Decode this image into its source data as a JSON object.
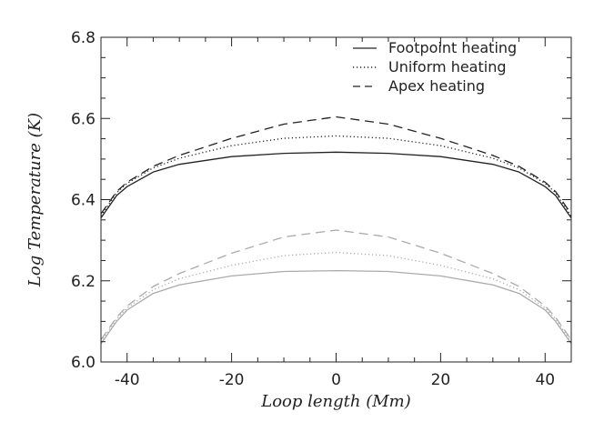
{
  "chart_data": {
    "type": "line",
    "title": "",
    "xlabel": "Loop length (Mm)",
    "ylabel": "Log Temperature (K)",
    "xlim": [
      -45,
      45
    ],
    "ylim": [
      6.0,
      6.8
    ],
    "xticks": [
      -40,
      -20,
      0,
      20,
      40
    ],
    "xtick_labels": [
      "-40",
      "-20",
      "0",
      "20",
      "40"
    ],
    "yticks": [
      6.0,
      6.2,
      6.4,
      6.6,
      6.8
    ],
    "ytick_labels": [
      "6.0",
      "6.2",
      "6.4",
      "6.6",
      "6.8"
    ],
    "grid": false,
    "legend_position": "top-right",
    "legend": [
      {
        "label": "Footpoint heating",
        "style": "solid"
      },
      {
        "label": "Uniform heating",
        "style": "dotted"
      },
      {
        "label": "Apex heating",
        "style": "dashed"
      }
    ],
    "colors": {
      "dark": "#222222",
      "light": "#aaaaaa"
    },
    "series": [
      {
        "style": "solid",
        "color": "dark",
        "x": [
          -45,
          -42,
          -40,
          -35,
          -30,
          -20,
          -10,
          0,
          10,
          20,
          30,
          35,
          40,
          42,
          45
        ],
        "y": [
          6.355,
          6.41,
          6.432,
          6.468,
          6.487,
          6.506,
          6.514,
          6.517,
          6.514,
          6.506,
          6.487,
          6.468,
          6.432,
          6.41,
          6.355
        ]
      },
      {
        "style": "dotted",
        "color": "dark",
        "x": [
          -45,
          -42,
          -40,
          -35,
          -30,
          -20,
          -10,
          0,
          10,
          20,
          30,
          35,
          40,
          42,
          45
        ],
        "y": [
          6.36,
          6.417,
          6.44,
          6.478,
          6.502,
          6.533,
          6.551,
          6.557,
          6.551,
          6.533,
          6.502,
          6.478,
          6.44,
          6.417,
          6.36
        ]
      },
      {
        "style": "dashed",
        "color": "dark",
        "x": [
          -45,
          -42,
          -40,
          -35,
          -30,
          -20,
          -10,
          0,
          10,
          20,
          30,
          35,
          40,
          42,
          45
        ],
        "y": [
          6.365,
          6.42,
          6.443,
          6.482,
          6.509,
          6.551,
          6.586,
          6.604,
          6.586,
          6.551,
          6.509,
          6.482,
          6.443,
          6.42,
          6.365
        ]
      },
      {
        "style": "solid",
        "color": "light",
        "x": [
          -45,
          -42,
          -40,
          -35,
          -30,
          -20,
          -10,
          0,
          10,
          20,
          30,
          35,
          40,
          42,
          45
        ],
        "y": [
          6.045,
          6.1,
          6.128,
          6.169,
          6.19,
          6.212,
          6.223,
          6.225,
          6.223,
          6.212,
          6.19,
          6.169,
          6.128,
          6.1,
          6.045
        ]
      },
      {
        "style": "dotted",
        "color": "light",
        "x": [
          -45,
          -42,
          -40,
          -35,
          -30,
          -20,
          -10,
          0,
          10,
          20,
          30,
          35,
          40,
          42,
          45
        ],
        "y": [
          6.05,
          6.106,
          6.133,
          6.178,
          6.205,
          6.238,
          6.262,
          6.27,
          6.262,
          6.238,
          6.205,
          6.178,
          6.133,
          6.106,
          6.05
        ]
      },
      {
        "style": "dashed",
        "color": "light",
        "x": [
          -45,
          -42,
          -40,
          -35,
          -30,
          -20,
          -10,
          0,
          10,
          20,
          30,
          35,
          40,
          42,
          45
        ],
        "y": [
          6.055,
          6.11,
          6.138,
          6.186,
          6.218,
          6.268,
          6.308,
          6.325,
          6.308,
          6.268,
          6.218,
          6.186,
          6.138,
          6.11,
          6.055
        ]
      }
    ]
  }
}
